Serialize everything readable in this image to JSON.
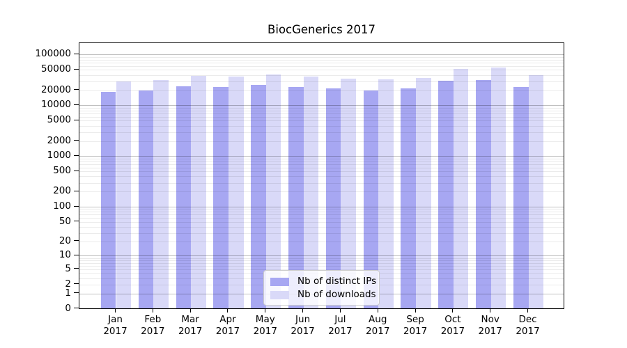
{
  "title": "BiocGenerics 2017",
  "chart_data": {
    "type": "bar",
    "title": "BiocGenerics 2017",
    "y_scale": "log-like (position proportional to log10(1+value)), 0 at baseline",
    "categories": [
      "Jan 2017",
      "Feb 2017",
      "Mar 2017",
      "Apr 2017",
      "May 2017",
      "Jun 2017",
      "Jul 2017",
      "Aug 2017",
      "Sep 2017",
      "Oct 2017",
      "Nov 2017",
      "Dec 2017"
    ],
    "series": [
      {
        "name": "Nb of distinct IPs",
        "color": "#a7a7f2",
        "values": [
          18300,
          19700,
          23900,
          22900,
          25200,
          22800,
          21500,
          19400,
          21800,
          30500,
          31400,
          22900
        ]
      },
      {
        "name": "Nb of downloads",
        "color": "#d9d9f8",
        "values": [
          30000,
          32000,
          38500,
          36500,
          41000,
          37200,
          33900,
          33100,
          35300,
          52700,
          56300,
          39600
        ]
      }
    ],
    "y_ticks": [
      0,
      1,
      2,
      5,
      10,
      20,
      50,
      100,
      200,
      500,
      1000,
      2000,
      5000,
      10000,
      20000,
      50000,
      100000
    ],
    "ylim": [
      0,
      170000
    ],
    "xlabel": "",
    "ylabel": "",
    "grid": "horizontal, major lines at powers of 10 and faint minor lines at 2-9 multiples",
    "legend_position": "inside bottom-center"
  },
  "colors": {
    "background": "#ffffff",
    "spine": "#000000",
    "grid_major": "#bfbfbf",
    "grid_minor": "#ebebeb",
    "bar_distinct_ips": "#a7a7f2",
    "bar_downloads": "#d9d9f8",
    "legend_border": "#cccccc"
  }
}
